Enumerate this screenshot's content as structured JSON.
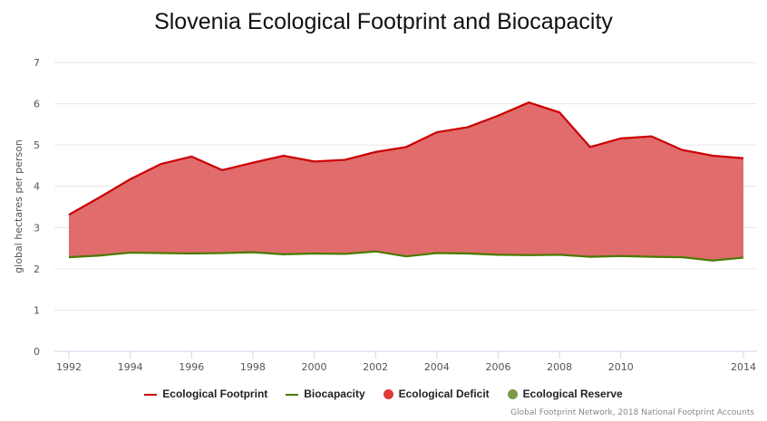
{
  "chart_data": {
    "type": "area",
    "title": "Slovenia Ecological Footprint and Biocapacity",
    "ylabel": "global hectares per person",
    "xlabel": "",
    "ylim": [
      0,
      7
    ],
    "yticks": [
      "0",
      "1",
      "2",
      "3",
      "4",
      "5",
      "6",
      "7"
    ],
    "xticks": [
      "1992",
      "1994",
      "1996",
      "1998",
      "2000",
      "2002",
      "2004",
      "2006",
      "2008",
      "2010",
      "2014"
    ],
    "x": [
      1992,
      1993,
      1994,
      1995,
      1996,
      1997,
      1998,
      1999,
      2000,
      2001,
      2002,
      2003,
      2004,
      2005,
      2006,
      2007,
      2008,
      2009,
      2010,
      2011,
      2012,
      2013,
      2014
    ],
    "series": [
      {
        "name": "Ecological Footprint",
        "color": "#cc0000",
        "values": [
          3.31,
          3.73,
          4.17,
          4.54,
          4.72,
          4.39,
          4.57,
          4.74,
          4.6,
          4.64,
          4.83,
          4.95,
          5.31,
          5.43,
          5.71,
          6.03,
          5.79,
          4.95,
          5.16,
          5.21,
          4.88,
          4.74,
          4.68
        ]
      },
      {
        "name": "Biocapacity",
        "color": "#4a7a00",
        "values": [
          2.28,
          2.32,
          2.39,
          2.38,
          2.37,
          2.38,
          2.4,
          2.35,
          2.37,
          2.36,
          2.42,
          2.3,
          2.38,
          2.37,
          2.34,
          2.33,
          2.34,
          2.29,
          2.31,
          2.29,
          2.28,
          2.2,
          2.27
        ]
      }
    ],
    "legend": [
      {
        "label": "Ecological Footprint",
        "kind": "line",
        "color": "#cc0000"
      },
      {
        "label": "Biocapacity",
        "kind": "line",
        "color": "#4a7a00"
      },
      {
        "label": "Ecological Deficit",
        "kind": "dot",
        "color": "#dd3c3c"
      },
      {
        "label": "Ecological Reserve",
        "kind": "dot",
        "color": "#7a9a4a"
      }
    ],
    "legend_position": "bottom",
    "deficit_fill": "#e06c6c",
    "grid": true
  },
  "credit": "Global Footprint Network, 2018 National Footprint Accounts"
}
